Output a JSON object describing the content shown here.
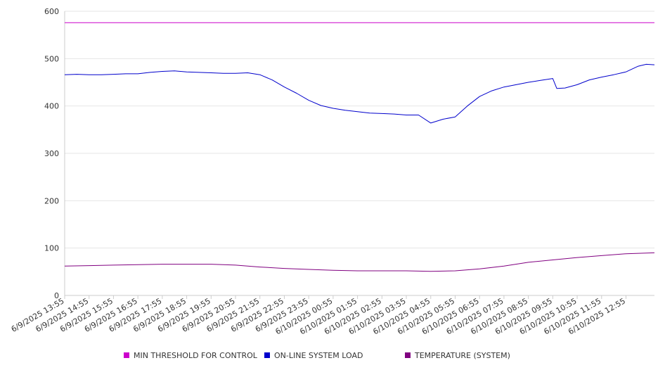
{
  "chart_data": {
    "type": "line",
    "title": "",
    "xlabel": "",
    "ylabel": "",
    "ylim": [
      0,
      600
    ],
    "yticks": [
      0,
      100,
      200,
      300,
      400,
      500,
      600
    ],
    "grid": true,
    "legend_position": "bottom",
    "x_tick_labels": [
      "6/9/2025 13:55",
      "6/9/2025 14:55",
      "6/9/2025 15:55",
      "6/9/2025 16:55",
      "6/9/2025 17:55",
      "6/9/2025 18:55",
      "6/9/2025 19:55",
      "6/9/2025 20:55",
      "6/9/2025 21:55",
      "6/9/2025 22:55",
      "6/9/2025 23:55",
      "6/10/2025 00:55",
      "6/10/2025 01:55",
      "6/10/2025 02:55",
      "6/10/2025 03:55",
      "6/10/2025 04:55",
      "6/10/2025 05:55",
      "6/10/2025 06:55",
      "6/10/2025 07:55",
      "6/10/2025 08:55",
      "6/10/2025 09:55",
      "6/10/2025 10:55",
      "6/10/2025 11:55",
      "6/10/2025 12:55"
    ],
    "x_start": "6/9/2025 13:55",
    "x_end": "6/10/2025 14:05",
    "series": [
      {
        "name": "MIN THRESHOLD FOR CONTROL",
        "color": "#cc00cc",
        "points": [
          [
            "6/9/2025 13:55",
            576
          ],
          [
            "6/10/2025 14:05",
            576
          ]
        ]
      },
      {
        "name": "ON-LINE SYSTEM LOAD",
        "color": "#0000cc",
        "points": [
          [
            "6/9/2025 13:55",
            466
          ],
          [
            "6/9/2025 14:25",
            467
          ],
          [
            "6/9/2025 14:55",
            466
          ],
          [
            "6/9/2025 15:25",
            466
          ],
          [
            "6/9/2025 15:55",
            467
          ],
          [
            "6/9/2025 16:25",
            468
          ],
          [
            "6/9/2025 16:55",
            468
          ],
          [
            "6/9/2025 17:25",
            471
          ],
          [
            "6/9/2025 17:55",
            473
          ],
          [
            "6/9/2025 18:25",
            474
          ],
          [
            "6/9/2025 18:55",
            472
          ],
          [
            "6/9/2025 19:25",
            471
          ],
          [
            "6/9/2025 19:55",
            470
          ],
          [
            "6/9/2025 20:25",
            469
          ],
          [
            "6/9/2025 20:55",
            469
          ],
          [
            "6/9/2025 21:25",
            470
          ],
          [
            "6/9/2025 21:55",
            466
          ],
          [
            "6/9/2025 22:25",
            455
          ],
          [
            "6/9/2025 22:55",
            440
          ],
          [
            "6/9/2025 23:25",
            427
          ],
          [
            "6/9/2025 23:55",
            412
          ],
          [
            "6/10/2025 00:25",
            401
          ],
          [
            "6/10/2025 00:55",
            395
          ],
          [
            "6/10/2025 01:25",
            391
          ],
          [
            "6/10/2025 01:55",
            388
          ],
          [
            "6/10/2025 02:25",
            385
          ],
          [
            "6/10/2025 02:55",
            384
          ],
          [
            "6/10/2025 03:25",
            383
          ],
          [
            "6/10/2025 03:55",
            381
          ],
          [
            "6/10/2025 04:25",
            381
          ],
          [
            "6/10/2025 04:55",
            364
          ],
          [
            "6/10/2025 05:25",
            372
          ],
          [
            "6/10/2025 05:55",
            377
          ],
          [
            "6/10/2025 06:25",
            400
          ],
          [
            "6/10/2025 06:55",
            420
          ],
          [
            "6/10/2025 07:25",
            432
          ],
          [
            "6/10/2025 07:55",
            440
          ],
          [
            "6/10/2025 08:25",
            445
          ],
          [
            "6/10/2025 08:55",
            450
          ],
          [
            "6/10/2025 09:25",
            454
          ],
          [
            "6/10/2025 09:55",
            458
          ],
          [
            "6/10/2025 10:05",
            437
          ],
          [
            "6/10/2025 10:25",
            438
          ],
          [
            "6/10/2025 10:55",
            445
          ],
          [
            "6/10/2025 11:25",
            455
          ],
          [
            "6/10/2025 11:55",
            461
          ],
          [
            "6/10/2025 12:25",
            466
          ],
          [
            "6/10/2025 12:55",
            472
          ],
          [
            "6/10/2025 13:25",
            484
          ],
          [
            "6/10/2025 13:45",
            488
          ],
          [
            "6/10/2025 14:05",
            487
          ]
        ]
      },
      {
        "name": "TEMPERATURE (SYSTEM)",
        "color": "#800080",
        "points": [
          [
            "6/9/2025 13:55",
            62
          ],
          [
            "6/9/2025 14:55",
            63
          ],
          [
            "6/9/2025 15:55",
            64
          ],
          [
            "6/9/2025 16:55",
            65
          ],
          [
            "6/9/2025 17:55",
            66
          ],
          [
            "6/9/2025 18:55",
            66
          ],
          [
            "6/9/2025 19:55",
            66
          ],
          [
            "6/9/2025 20:55",
            64
          ],
          [
            "6/9/2025 21:55",
            60
          ],
          [
            "6/9/2025 22:55",
            57
          ],
          [
            "6/9/2025 23:55",
            55
          ],
          [
            "6/10/2025 00:55",
            53
          ],
          [
            "6/10/2025 01:55",
            52
          ],
          [
            "6/10/2025 02:55",
            52
          ],
          [
            "6/10/2025 03:55",
            52
          ],
          [
            "6/10/2025 04:55",
            51
          ],
          [
            "6/10/2025 05:55",
            52
          ],
          [
            "6/10/2025 06:55",
            56
          ],
          [
            "6/10/2025 07:55",
            62
          ],
          [
            "6/10/2025 08:55",
            70
          ],
          [
            "6/10/2025 09:55",
            75
          ],
          [
            "6/10/2025 10:55",
            80
          ],
          [
            "6/10/2025 11:55",
            84
          ],
          [
            "6/10/2025 12:55",
            88
          ],
          [
            "6/10/2025 14:05",
            90
          ]
        ]
      }
    ]
  }
}
